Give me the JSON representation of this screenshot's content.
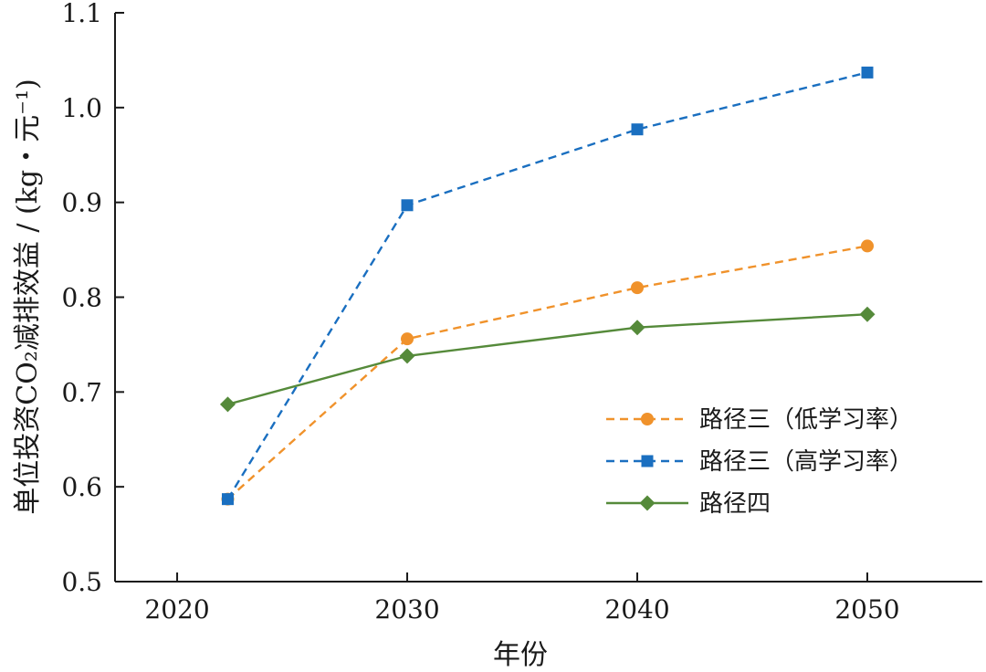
{
  "chart_data": {
    "type": "line",
    "xlabel": "年份",
    "ylabel": "单位投资CO₂减排效益 / (kg・元⁻¹)",
    "x_ticks": [
      2020,
      2030,
      2040,
      2050
    ],
    "y_ticks": [
      "0.5",
      "0.6",
      "0.7",
      "0.8",
      "0.9",
      "1.0",
      "1.1"
    ],
    "xlim": [
      2017.3,
      2055
    ],
    "ylim": [
      0.5,
      1.1
    ],
    "grid": false,
    "legend_position": "right",
    "series": [
      {
        "name": "路径三（低学习率）",
        "color": "#f0922b",
        "marker": "circle",
        "dash": true,
        "points": [
          [
            2022.2,
            0.587
          ],
          [
            2030,
            0.756
          ],
          [
            2040,
            0.81
          ],
          [
            2050,
            0.854
          ]
        ]
      },
      {
        "name": "路径三（高学习率）",
        "color": "#1a6fc0",
        "marker": "square",
        "dash": true,
        "points": [
          [
            2022.2,
            0.587
          ],
          [
            2030,
            0.897
          ],
          [
            2040,
            0.977
          ],
          [
            2050,
            1.037
          ]
        ]
      },
      {
        "name": "路径四",
        "color": "#558a3a",
        "marker": "diamond",
        "dash": false,
        "points": [
          [
            2022.2,
            0.687
          ],
          [
            2030,
            0.738
          ],
          [
            2040,
            0.768
          ],
          [
            2050,
            0.782
          ]
        ]
      }
    ]
  }
}
